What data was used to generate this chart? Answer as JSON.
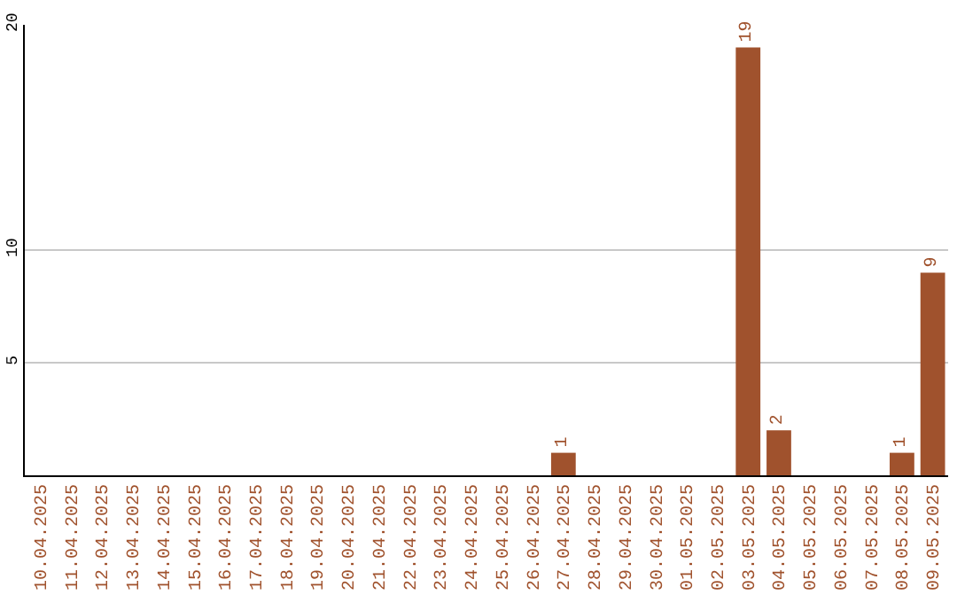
{
  "chart_data": {
    "type": "bar",
    "categories": [
      "10.04.2025",
      "11.04.2025",
      "12.04.2025",
      "13.04.2025",
      "14.04.2025",
      "15.04.2025",
      "16.04.2025",
      "17.04.2025",
      "18.04.2025",
      "19.04.2025",
      "20.04.2025",
      "21.04.2025",
      "22.04.2025",
      "23.04.2025",
      "24.04.2025",
      "25.04.2025",
      "26.04.2025",
      "27.04.2025",
      "28.04.2025",
      "29.04.2025",
      "30.04.2025",
      "01.05.2025",
      "02.05.2025",
      "03.05.2025",
      "04.05.2025",
      "05.05.2025",
      "06.05.2025",
      "07.05.2025",
      "08.05.2025",
      "09.05.2025"
    ],
    "values": [
      0,
      0,
      0,
      0,
      0,
      0,
      0,
      0,
      0,
      0,
      0,
      0,
      0,
      0,
      0,
      0,
      0,
      1,
      0,
      0,
      0,
      0,
      0,
      19,
      2,
      0,
      0,
      0,
      1,
      9
    ],
    "value_labels": [
      null,
      null,
      null,
      null,
      null,
      null,
      null,
      null,
      null,
      null,
      null,
      null,
      null,
      null,
      null,
      null,
      null,
      "1",
      null,
      null,
      null,
      null,
      null,
      "19",
      "2",
      null,
      null,
      null,
      "1",
      "9"
    ],
    "color": "#a0522d",
    "ylim": [
      0,
      20
    ],
    "yticks": [
      5,
      10,
      20
    ],
    "grid": "y",
    "legend": false
  }
}
